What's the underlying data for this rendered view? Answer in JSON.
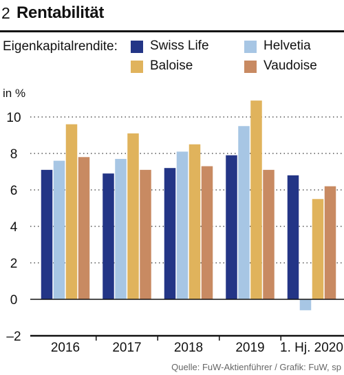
{
  "header": {
    "number": "2",
    "title": "Rentabilität"
  },
  "legend_label": "Eigenkapitalrendite:",
  "footer": {
    "source": "Quelle: FuW-Aktienführer / Grafik: FuW, sp"
  },
  "chart_data": {
    "type": "bar",
    "title": "Rentabilität",
    "ylabel": "in %",
    "categories": [
      "2016",
      "2017",
      "2018",
      "2019",
      "1. Hj. 2020"
    ],
    "ylim": [
      -2,
      11
    ],
    "yticks": [
      -2,
      0,
      2,
      4,
      6,
      8,
      10
    ],
    "ytick_labels": [
      "–2",
      "0",
      "2",
      "4",
      "6",
      "8",
      "10"
    ],
    "grid": "horizontal dotted",
    "legend_position": "top",
    "series": [
      {
        "name": "Swiss Life",
        "color": "#233586",
        "values": [
          7.1,
          6.9,
          7.2,
          7.9,
          6.8
        ]
      },
      {
        "name": "Helvetia",
        "color": "#a7c6e4",
        "values": [
          7.6,
          7.7,
          8.1,
          9.5,
          -0.6
        ]
      },
      {
        "name": "Baloise",
        "color": "#e0b35c",
        "values": [
          9.6,
          9.1,
          8.5,
          10.9,
          5.5
        ]
      },
      {
        "name": "Vaudoise",
        "color": "#c88a62",
        "values": [
          7.8,
          7.1,
          7.3,
          7.1,
          6.2
        ]
      }
    ]
  }
}
